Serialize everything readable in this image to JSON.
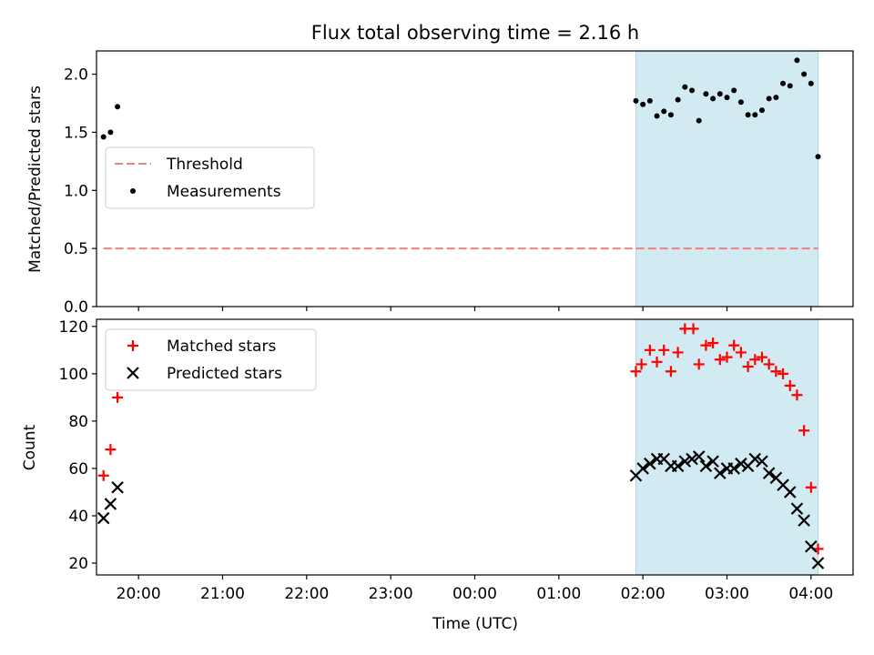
{
  "chart_data": [
    {
      "type": "scatter",
      "title": "Flux total observing time = 2.16 h",
      "xlabel": "",
      "ylabel": "Matched/Predicted stars",
      "x_unit": "hours UTC",
      "xlim": [
        "19:30",
        "04:30"
      ],
      "ylim": [
        0,
        2.2
      ],
      "yticks": [
        "0.0",
        "0.5",
        "1.0",
        "1.5",
        "2.0"
      ],
      "shaded_interval": [
        "01:55",
        "04:05"
      ],
      "shaded_color": "#add8e6",
      "legend_position": "center-left",
      "legend": [
        {
          "name": "Threshold",
          "marker": "dashed-line",
          "color": "#f08080"
        },
        {
          "name": "Measurements",
          "marker": "dot",
          "color": "#000000"
        }
      ],
      "threshold": {
        "name": "Threshold",
        "value": 0.5,
        "x_range": [
          "19:35",
          "04:05"
        ],
        "color": "#f08080"
      },
      "series": [
        {
          "name": "Measurements",
          "color": "#000000",
          "marker": "dot",
          "points": [
            {
              "x": "19:35",
              "y": 1.46
            },
            {
              "x": "19:40",
              "y": 1.5
            },
            {
              "x": "19:45",
              "y": 1.72
            },
            {
              "x": "01:55",
              "y": 1.77
            },
            {
              "x": "02:00",
              "y": 1.74
            },
            {
              "x": "02:05",
              "y": 1.77
            },
            {
              "x": "02:10",
              "y": 1.64
            },
            {
              "x": "02:15",
              "y": 1.68
            },
            {
              "x": "02:20",
              "y": 1.65
            },
            {
              "x": "02:25",
              "y": 1.78
            },
            {
              "x": "02:30",
              "y": 1.89
            },
            {
              "x": "02:35",
              "y": 1.86
            },
            {
              "x": "02:40",
              "y": 1.6
            },
            {
              "x": "02:45",
              "y": 1.83
            },
            {
              "x": "02:50",
              "y": 1.79
            },
            {
              "x": "02:55",
              "y": 1.83
            },
            {
              "x": "03:00",
              "y": 1.8
            },
            {
              "x": "03:05",
              "y": 1.86
            },
            {
              "x": "03:10",
              "y": 1.76
            },
            {
              "x": "03:15",
              "y": 1.65
            },
            {
              "x": "03:20",
              "y": 1.65
            },
            {
              "x": "03:25",
              "y": 1.69
            },
            {
              "x": "03:30",
              "y": 1.79
            },
            {
              "x": "03:35",
              "y": 1.8
            },
            {
              "x": "03:40",
              "y": 1.92
            },
            {
              "x": "03:45",
              "y": 1.9
            },
            {
              "x": "03:50",
              "y": 2.12
            },
            {
              "x": "03:55",
              "y": 2.0
            },
            {
              "x": "04:00",
              "y": 1.92
            },
            {
              "x": "04:05",
              "y": 1.29
            }
          ]
        }
      ]
    },
    {
      "type": "scatter",
      "title": "",
      "xlabel": "Time (UTC)",
      "ylabel": "Count",
      "x_unit": "hours UTC",
      "xlim": [
        "19:30",
        "04:30"
      ],
      "xticks": [
        "20:00",
        "21:00",
        "22:00",
        "23:00",
        "00:00",
        "01:00",
        "02:00",
        "03:00",
        "04:00"
      ],
      "ylim": [
        15,
        123
      ],
      "yticks": [
        "20",
        "40",
        "60",
        "80",
        "100",
        "120"
      ],
      "shaded_interval": [
        "01:55",
        "04:05"
      ],
      "shaded_color": "#add8e6",
      "legend_position": "upper-left",
      "legend": [
        {
          "name": "Matched stars",
          "marker": "plus",
          "color": "#ff0000"
        },
        {
          "name": "Predicted stars",
          "marker": "x",
          "color": "#000000"
        }
      ],
      "series": [
        {
          "name": "Matched stars",
          "color": "#ff0000",
          "marker": "plus",
          "points": [
            {
              "x": "19:35",
              "y": 57
            },
            {
              "x": "19:40",
              "y": 68
            },
            {
              "x": "19:45",
              "y": 90
            },
            {
              "x": "01:55",
              "y": 101
            },
            {
              "x": "01:59",
              "y": 104
            },
            {
              "x": "02:05",
              "y": 110
            },
            {
              "x": "02:10",
              "y": 105
            },
            {
              "x": "02:15",
              "y": 110
            },
            {
              "x": "02:20",
              "y": 101
            },
            {
              "x": "02:25",
              "y": 109
            },
            {
              "x": "02:30",
              "y": 119
            },
            {
              "x": "02:36",
              "y": 119
            },
            {
              "x": "02:40",
              "y": 104
            },
            {
              "x": "02:45",
              "y": 112
            },
            {
              "x": "02:50",
              "y": 113
            },
            {
              "x": "02:55",
              "y": 106
            },
            {
              "x": "03:00",
              "y": 107
            },
            {
              "x": "03:05",
              "y": 112
            },
            {
              "x": "03:10",
              "y": 109
            },
            {
              "x": "03:15",
              "y": 103
            },
            {
              "x": "03:20",
              "y": 106
            },
            {
              "x": "03:25",
              "y": 107
            },
            {
              "x": "03:30",
              "y": 104
            },
            {
              "x": "03:35",
              "y": 101
            },
            {
              "x": "03:40",
              "y": 100
            },
            {
              "x": "03:45",
              "y": 95
            },
            {
              "x": "03:50",
              "y": 91
            },
            {
              "x": "03:55",
              "y": 76
            },
            {
              "x": "04:00",
              "y": 52
            },
            {
              "x": "04:05",
              "y": 26
            }
          ]
        },
        {
          "name": "Predicted stars",
          "color": "#000000",
          "marker": "x",
          "points": [
            {
              "x": "19:35",
              "y": 39
            },
            {
              "x": "19:40",
              "y": 45
            },
            {
              "x": "19:45",
              "y": 52
            },
            {
              "x": "01:55",
              "y": 57
            },
            {
              "x": "02:00",
              "y": 60
            },
            {
              "x": "02:05",
              "y": 62
            },
            {
              "x": "02:10",
              "y": 64
            },
            {
              "x": "02:15",
              "y": 64
            },
            {
              "x": "02:20",
              "y": 61
            },
            {
              "x": "02:25",
              "y": 61
            },
            {
              "x": "02:30",
              "y": 63
            },
            {
              "x": "02:35",
              "y": 64
            },
            {
              "x": "02:40",
              "y": 65
            },
            {
              "x": "02:45",
              "y": 61
            },
            {
              "x": "02:50",
              "y": 63
            },
            {
              "x": "02:55",
              "y": 58
            },
            {
              "x": "03:00",
              "y": 60
            },
            {
              "x": "03:05",
              "y": 60
            },
            {
              "x": "03:10",
              "y": 62
            },
            {
              "x": "03:15",
              "y": 61
            },
            {
              "x": "03:20",
              "y": 64
            },
            {
              "x": "03:25",
              "y": 63
            },
            {
              "x": "03:30",
              "y": 58
            },
            {
              "x": "03:35",
              "y": 56
            },
            {
              "x": "03:40",
              "y": 53
            },
            {
              "x": "03:45",
              "y": 50
            },
            {
              "x": "03:50",
              "y": 43
            },
            {
              "x": "03:55",
              "y": 38
            },
            {
              "x": "04:00",
              "y": 27
            },
            {
              "x": "04:05",
              "y": 20
            }
          ]
        }
      ]
    }
  ]
}
